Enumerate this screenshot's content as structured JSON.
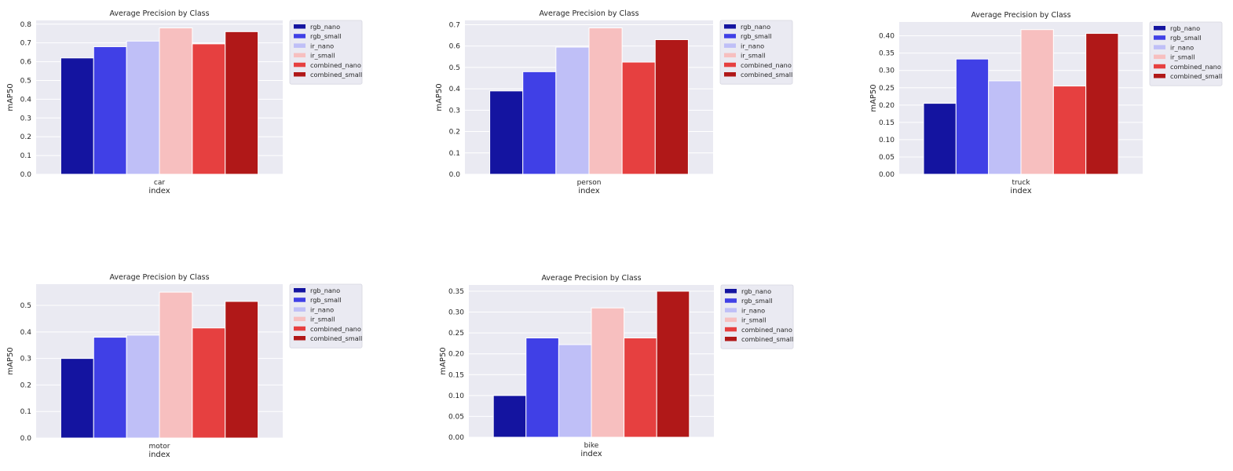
{
  "chart_data": [
    {
      "type": "bar",
      "title": "Average Precision by Class",
      "xlabel": "index",
      "ylabel": "mAP50",
      "categories": [
        "car"
      ],
      "ylim": [
        0,
        0.82
      ],
      "yticks": [
        "0.0",
        "0.1",
        "0.2",
        "0.3",
        "0.4",
        "0.5",
        "0.6",
        "0.7",
        "0.8"
      ],
      "series": [
        {
          "name": "rgb_nano",
          "values": [
            0.62
          ]
        },
        {
          "name": "rgb_small",
          "values": [
            0.68
          ]
        },
        {
          "name": "ir_nano",
          "values": [
            0.71
          ]
        },
        {
          "name": "ir_small",
          "values": [
            0.78
          ]
        },
        {
          "name": "combined_nano",
          "values": [
            0.695
          ]
        },
        {
          "name": "combined_small",
          "values": [
            0.76
          ]
        }
      ],
      "legend": "outside-upper-right",
      "grid": true
    },
    {
      "type": "bar",
      "title": "Average Precision by Class",
      "xlabel": "index",
      "ylabel": "mAP50",
      "categories": [
        "person"
      ],
      "ylim": [
        0,
        0.72
      ],
      "yticks": [
        "0.0",
        "0.1",
        "0.2",
        "0.3",
        "0.4",
        "0.5",
        "0.6",
        "0.7"
      ],
      "series": [
        {
          "name": "rgb_nano",
          "values": [
            0.39
          ]
        },
        {
          "name": "rgb_small",
          "values": [
            0.48
          ]
        },
        {
          "name": "ir_nano",
          "values": [
            0.595
          ]
        },
        {
          "name": "ir_small",
          "values": [
            0.685
          ]
        },
        {
          "name": "combined_nano",
          "values": [
            0.525
          ]
        },
        {
          "name": "combined_small",
          "values": [
            0.63
          ]
        }
      ],
      "legend": "outside-upper-right",
      "grid": true
    },
    {
      "type": "bar",
      "title": "Average Precision by Class",
      "xlabel": "index",
      "ylabel": "mAP50",
      "categories": [
        "truck"
      ],
      "ylim": [
        0,
        0.44
      ],
      "yticks": [
        "0.00",
        "0.05",
        "0.10",
        "0.15",
        "0.20",
        "0.25",
        "0.30",
        "0.35",
        "0.40"
      ],
      "series": [
        {
          "name": "rgb_nano",
          "values": [
            0.205
          ]
        },
        {
          "name": "rgb_small",
          "values": [
            0.333
          ]
        },
        {
          "name": "ir_nano",
          "values": [
            0.27
          ]
        },
        {
          "name": "ir_small",
          "values": [
            0.418
          ]
        },
        {
          "name": "combined_nano",
          "values": [
            0.255
          ]
        },
        {
          "name": "combined_small",
          "values": [
            0.407
          ]
        }
      ],
      "legend": "outside-upper-right",
      "grid": true
    },
    {
      "type": "bar",
      "title": "Average Precision by Class",
      "xlabel": "index",
      "ylabel": "mAP50",
      "categories": [
        "motor"
      ],
      "ylim": [
        0,
        0.58
      ],
      "yticks": [
        "0.0",
        "0.1",
        "0.2",
        "0.3",
        "0.4",
        "0.5"
      ],
      "series": [
        {
          "name": "rgb_nano",
          "values": [
            0.3
          ]
        },
        {
          "name": "rgb_small",
          "values": [
            0.38
          ]
        },
        {
          "name": "ir_nano",
          "values": [
            0.388
          ]
        },
        {
          "name": "ir_small",
          "values": [
            0.55
          ]
        },
        {
          "name": "combined_nano",
          "values": [
            0.415
          ]
        },
        {
          "name": "combined_small",
          "values": [
            0.515
          ]
        }
      ],
      "legend": "outside-upper-right",
      "grid": true
    },
    {
      "type": "bar",
      "title": "Average Precision by Class",
      "xlabel": "index",
      "ylabel": "mAP50",
      "categories": [
        "bike"
      ],
      "ylim": [
        0,
        0.365
      ],
      "yticks": [
        "0.00",
        "0.05",
        "0.10",
        "0.15",
        "0.20",
        "0.25",
        "0.30",
        "0.35"
      ],
      "series": [
        {
          "name": "rgb_nano",
          "values": [
            0.1
          ]
        },
        {
          "name": "rgb_small",
          "values": [
            0.238
          ]
        },
        {
          "name": "ir_nano",
          "values": [
            0.222
          ]
        },
        {
          "name": "ir_small",
          "values": [
            0.31
          ]
        },
        {
          "name": "combined_nano",
          "values": [
            0.238
          ]
        },
        {
          "name": "combined_small",
          "values": [
            0.35
          ]
        }
      ],
      "legend": "outside-upper-right",
      "grid": true
    }
  ],
  "colors": {
    "series": [
      "#1414a0",
      "#4040e6",
      "#bfbff7",
      "#f7bfbf",
      "#e64040",
      "#b01818"
    ],
    "plot_background": "#eaeaf2",
    "grid": "#ffffff",
    "legend_background": "#eaeaf2"
  }
}
